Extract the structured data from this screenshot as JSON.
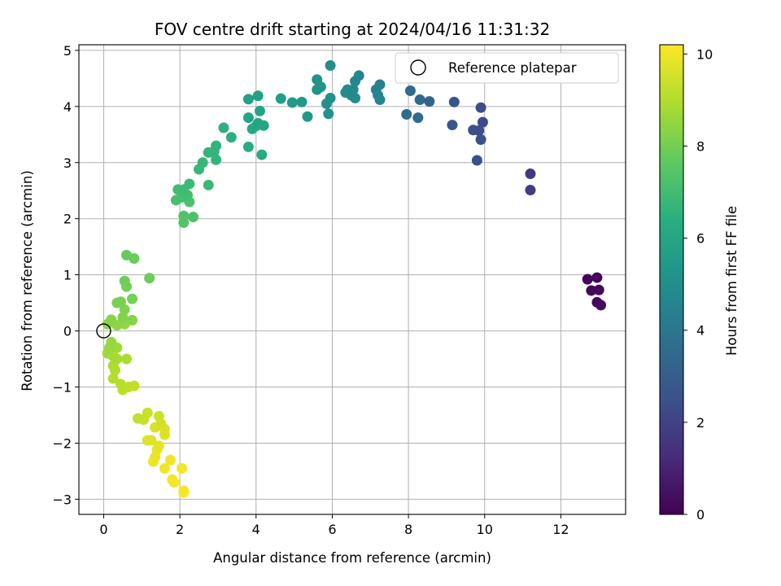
{
  "chart_data": {
    "type": "scatter",
    "title": "FOV centre drift starting at 2024/04/16 11:31:32",
    "xlabel": "Angular distance from reference (arcmin)",
    "ylabel": "Rotation from reference (arcmin)",
    "xlim": [
      -0.65,
      13.7
    ],
    "ylim": [
      -3.27,
      5.1
    ],
    "xticks": [
      0,
      2,
      4,
      6,
      8,
      10,
      12
    ],
    "yticks": [
      -3,
      -2,
      -1,
      0,
      1,
      2,
      3,
      4,
      5
    ],
    "grid": true,
    "legend": {
      "position": "top-right",
      "entries": [
        "Reference platepar"
      ]
    },
    "reference_point": {
      "x": 0,
      "y": 0
    },
    "colorbar": {
      "label": "Hours from first FF file",
      "colormap": "viridis",
      "range": [
        0,
        10.2
      ],
      "ticks": [
        0,
        2,
        4,
        6,
        8,
        10
      ]
    },
    "points": [
      {
        "x": 12.7,
        "y": 0.92,
        "h": 0.1
      },
      {
        "x": 12.95,
        "y": 0.95,
        "h": 0.15
      },
      {
        "x": 12.8,
        "y": 0.72,
        "h": 0.2
      },
      {
        "x": 13.0,
        "y": 0.73,
        "h": 0.25
      },
      {
        "x": 12.95,
        "y": 0.51,
        "h": 0.3
      },
      {
        "x": 13.05,
        "y": 0.46,
        "h": 0.35
      },
      {
        "x": 11.2,
        "y": 2.8,
        "h": 1.7
      },
      {
        "x": 11.2,
        "y": 2.51,
        "h": 1.8
      },
      {
        "x": 9.9,
        "y": 3.98,
        "h": 2.3
      },
      {
        "x": 9.95,
        "y": 3.72,
        "h": 2.35
      },
      {
        "x": 9.85,
        "y": 3.57,
        "h": 2.4
      },
      {
        "x": 9.7,
        "y": 3.58,
        "h": 2.45
      },
      {
        "x": 9.9,
        "y": 3.41,
        "h": 2.5
      },
      {
        "x": 9.8,
        "y": 3.04,
        "h": 2.5
      },
      {
        "x": 9.2,
        "y": 4.08,
        "h": 2.7
      },
      {
        "x": 9.15,
        "y": 3.67,
        "h": 2.75
      },
      {
        "x": 8.55,
        "y": 4.09,
        "h": 3.3
      },
      {
        "x": 8.3,
        "y": 4.12,
        "h": 3.4
      },
      {
        "x": 8.05,
        "y": 4.28,
        "h": 3.5
      },
      {
        "x": 8.25,
        "y": 3.8,
        "h": 3.55
      },
      {
        "x": 7.95,
        "y": 3.86,
        "h": 3.6
      },
      {
        "x": 7.25,
        "y": 4.39,
        "h": 4.5
      },
      {
        "x": 7.15,
        "y": 4.3,
        "h": 4.55
      },
      {
        "x": 7.2,
        "y": 4.2,
        "h": 4.6
      },
      {
        "x": 7.25,
        "y": 4.12,
        "h": 4.65
      },
      {
        "x": 6.7,
        "y": 4.55,
        "h": 4.7
      },
      {
        "x": 6.6,
        "y": 4.45,
        "h": 4.75
      },
      {
        "x": 6.55,
        "y": 4.3,
        "h": 4.8
      },
      {
        "x": 6.5,
        "y": 4.2,
        "h": 4.85
      },
      {
        "x": 6.4,
        "y": 4.3,
        "h": 4.9
      },
      {
        "x": 6.35,
        "y": 4.25,
        "h": 4.95
      },
      {
        "x": 6.6,
        "y": 4.15,
        "h": 5.0
      },
      {
        "x": 5.95,
        "y": 4.73,
        "h": 5.0
      },
      {
        "x": 5.95,
        "y": 4.15,
        "h": 5.05
      },
      {
        "x": 5.85,
        "y": 4.05,
        "h": 5.1
      },
      {
        "x": 5.9,
        "y": 3.87,
        "h": 5.15
      },
      {
        "x": 5.6,
        "y": 4.48,
        "h": 5.2
      },
      {
        "x": 5.7,
        "y": 4.35,
        "h": 5.25
      },
      {
        "x": 5.6,
        "y": 4.3,
        "h": 5.3
      },
      {
        "x": 5.35,
        "y": 3.82,
        "h": 5.4
      },
      {
        "x": 5.2,
        "y": 4.08,
        "h": 5.5
      },
      {
        "x": 4.95,
        "y": 4.07,
        "h": 5.6
      },
      {
        "x": 4.65,
        "y": 4.14,
        "h": 5.7
      },
      {
        "x": 4.05,
        "y": 4.19,
        "h": 5.8
      },
      {
        "x": 3.8,
        "y": 4.13,
        "h": 5.85
      },
      {
        "x": 4.1,
        "y": 3.92,
        "h": 5.9
      },
      {
        "x": 3.8,
        "y": 3.8,
        "h": 5.95
      },
      {
        "x": 4.05,
        "y": 3.7,
        "h": 6.0
      },
      {
        "x": 4.2,
        "y": 3.66,
        "h": 6.05
      },
      {
        "x": 3.9,
        "y": 3.6,
        "h": 6.1
      },
      {
        "x": 4.0,
        "y": 3.65,
        "h": 6.15
      },
      {
        "x": 4.15,
        "y": 3.14,
        "h": 6.2
      },
      {
        "x": 3.8,
        "y": 3.28,
        "h": 6.25
      },
      {
        "x": 3.35,
        "y": 3.45,
        "h": 6.4
      },
      {
        "x": 3.15,
        "y": 3.62,
        "h": 6.5
      },
      {
        "x": 2.95,
        "y": 3.3,
        "h": 6.6
      },
      {
        "x": 2.95,
        "y": 3.05,
        "h": 6.65
      },
      {
        "x": 2.75,
        "y": 3.18,
        "h": 6.7
      },
      {
        "x": 2.9,
        "y": 3.2,
        "h": 6.75
      },
      {
        "x": 2.6,
        "y": 3.0,
        "h": 6.8
      },
      {
        "x": 2.5,
        "y": 2.88,
        "h": 6.85
      },
      {
        "x": 2.75,
        "y": 2.6,
        "h": 6.9
      },
      {
        "x": 2.25,
        "y": 2.62,
        "h": 6.95
      },
      {
        "x": 2.1,
        "y": 2.52,
        "h": 7.0
      },
      {
        "x": 1.95,
        "y": 2.52,
        "h": 7.05
      },
      {
        "x": 2.2,
        "y": 2.42,
        "h": 7.1
      },
      {
        "x": 2.05,
        "y": 2.38,
        "h": 7.15
      },
      {
        "x": 1.9,
        "y": 2.33,
        "h": 7.2
      },
      {
        "x": 2.25,
        "y": 2.3,
        "h": 7.25
      },
      {
        "x": 2.35,
        "y": 2.03,
        "h": 7.3
      },
      {
        "x": 2.1,
        "y": 2.05,
        "h": 7.35
      },
      {
        "x": 2.1,
        "y": 1.93,
        "h": 7.4
      },
      {
        "x": 0.6,
        "y": 1.35,
        "h": 7.8
      },
      {
        "x": 0.8,
        "y": 1.29,
        "h": 7.85
      },
      {
        "x": 1.2,
        "y": 0.94,
        "h": 7.9
      },
      {
        "x": 0.55,
        "y": 0.89,
        "h": 7.95
      },
      {
        "x": 0.6,
        "y": 0.79,
        "h": 8.0
      },
      {
        "x": 0.75,
        "y": 0.57,
        "h": 8.05
      },
      {
        "x": 0.45,
        "y": 0.52,
        "h": 8.1
      },
      {
        "x": 0.35,
        "y": 0.5,
        "h": 8.15
      },
      {
        "x": 0.55,
        "y": 0.38,
        "h": 8.2
      },
      {
        "x": 0.5,
        "y": 0.24,
        "h": 8.25
      },
      {
        "x": 0.75,
        "y": 0.19,
        "h": 8.3
      },
      {
        "x": 0.2,
        "y": 0.2,
        "h": 8.35
      },
      {
        "x": 0.1,
        "y": 0.12,
        "h": 8.4
      },
      {
        "x": 0.35,
        "y": 0.1,
        "h": 8.45
      },
      {
        "x": 0.55,
        "y": 0.12,
        "h": 8.5
      },
      {
        "x": 0.2,
        "y": -0.2,
        "h": 8.6
      },
      {
        "x": 0.15,
        "y": -0.3,
        "h": 8.65
      },
      {
        "x": 0.35,
        "y": -0.3,
        "h": 8.7
      },
      {
        "x": 0.1,
        "y": -0.4,
        "h": 8.75
      },
      {
        "x": 0.25,
        "y": -0.45,
        "h": 8.8
      },
      {
        "x": 0.35,
        "y": -0.5,
        "h": 8.85
      },
      {
        "x": 0.6,
        "y": -0.5,
        "h": 8.9
      },
      {
        "x": 0.25,
        "y": -0.62,
        "h": 8.95
      },
      {
        "x": 0.3,
        "y": -0.7,
        "h": 9.0
      },
      {
        "x": 0.25,
        "y": -0.85,
        "h": 9.05
      },
      {
        "x": 0.45,
        "y": -0.95,
        "h": 9.1
      },
      {
        "x": 0.5,
        "y": -1.05,
        "h": 9.15
      },
      {
        "x": 0.65,
        "y": -1.0,
        "h": 9.2
      },
      {
        "x": 0.8,
        "y": -0.98,
        "h": 9.25
      },
      {
        "x": 0.9,
        "y": -1.56,
        "h": 9.3
      },
      {
        "x": 1.05,
        "y": -1.58,
        "h": 9.35
      },
      {
        "x": 1.15,
        "y": -1.46,
        "h": 9.4
      },
      {
        "x": 1.45,
        "y": -1.52,
        "h": 9.45
      },
      {
        "x": 1.5,
        "y": -1.65,
        "h": 9.5
      },
      {
        "x": 1.35,
        "y": -1.72,
        "h": 9.55
      },
      {
        "x": 1.6,
        "y": -1.75,
        "h": 9.6
      },
      {
        "x": 1.6,
        "y": -1.85,
        "h": 9.65
      },
      {
        "x": 1.15,
        "y": -1.95,
        "h": 9.7
      },
      {
        "x": 1.25,
        "y": -1.95,
        "h": 9.75
      },
      {
        "x": 1.45,
        "y": -2.05,
        "h": 9.8
      },
      {
        "x": 1.4,
        "y": -2.12,
        "h": 9.85
      },
      {
        "x": 1.35,
        "y": -2.25,
        "h": 9.9
      },
      {
        "x": 1.3,
        "y": -2.33,
        "h": 9.95
      },
      {
        "x": 1.75,
        "y": -2.3,
        "h": 10.0
      },
      {
        "x": 1.6,
        "y": -2.45,
        "h": 10.0
      },
      {
        "x": 2.05,
        "y": -2.45,
        "h": 10.05
      },
      {
        "x": 1.8,
        "y": -2.65,
        "h": 10.05
      },
      {
        "x": 1.85,
        "y": -2.7,
        "h": 10.1
      },
      {
        "x": 2.1,
        "y": -2.85,
        "h": 10.1
      },
      {
        "x": 2.1,
        "y": -2.88,
        "h": 10.15
      }
    ]
  }
}
